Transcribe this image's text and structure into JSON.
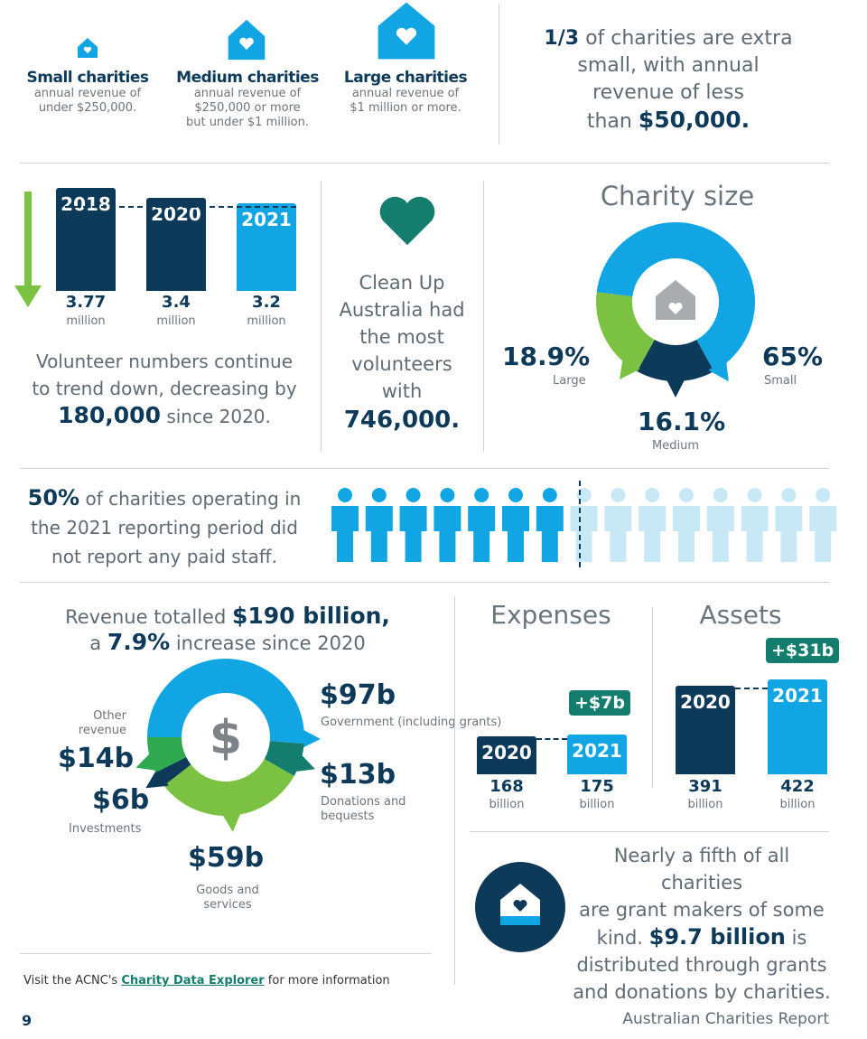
{
  "categories": [
    {
      "title": "Small charities",
      "desc": [
        "annual revenue of",
        "under $250,000."
      ]
    },
    {
      "title": "Medium charities",
      "desc": [
        "annual revenue of",
        "$250,000 or more",
        "but under $1 million."
      ]
    },
    {
      "title": "Large charities",
      "desc": [
        "annual revenue of",
        "$1 million or more."
      ]
    }
  ],
  "extra_small": {
    "bold1": "1/3",
    "t1": " of charities are extra",
    "t2": "small, with annual",
    "t3": "revenue of less",
    "t4": "than ",
    "bold2": "$50,000."
  },
  "volunteers": {
    "line1": "Volunteer numbers continue",
    "line2": "to trend down, decreasing by",
    "bold": "180,000",
    "line3": " since 2020."
  },
  "clean_up": {
    "lines": [
      "Clean Up",
      "Australia had",
      "the most",
      "volunteers",
      "with"
    ],
    "bold": "746,000."
  },
  "charity_size_title": "Charity size",
  "staff": {
    "bold": "50%",
    "t1": " of charities operating in",
    "t2": "the 2021 reporting period did",
    "t3": "not report any paid staff."
  },
  "revenue": {
    "t1": "Revenue totalled ",
    "b1": "$190 billion,",
    "t2": "a ",
    "b2": "7.9%",
    "t3": " increase since 2020"
  },
  "expenses_title": "Expenses",
  "assets_title": "Assets",
  "expenses_badge": "+$7b",
  "assets_badge": "+$31b",
  "grants": {
    "l1": "Nearly a fifth of all charities",
    "l2": "are grant makers of some",
    "l3a": "kind. ",
    "b": "$9.7 billion",
    "l3b": " is",
    "l4": "distributed through grants",
    "l5": "and donations by charities."
  },
  "footer": {
    "visit": "Visit the ACNC's ",
    "link": "Charity Data Explorer",
    "more": " for more information",
    "page": "9",
    "report": "Australian Charities Report"
  },
  "colors": {
    "navy": "#0e3a5a",
    "light_blue": "#12a5e3",
    "lime": "#7cc242",
    "green": "#2fa84f",
    "teal": "#147d6e",
    "pale_blue": "#c8e8f6"
  },
  "chart_data": [
    {
      "type": "bar",
      "id": "volunteers",
      "categories": [
        "2018",
        "2020",
        "2021"
      ],
      "values": [
        3.77,
        3.4,
        3.2
      ],
      "unit": "million"
    },
    {
      "type": "pie",
      "id": "charity_size",
      "title": "Charity size",
      "labels": [
        "Small",
        "Medium",
        "Large"
      ],
      "values": [
        65,
        16.1,
        18.9
      ],
      "value_labels": [
        "65%",
        "16.1%",
        "18.9%"
      ]
    },
    {
      "type": "pie",
      "id": "revenue",
      "labels": [
        "Government (including grants)",
        "Donations and bequests",
        "Goods and services",
        "Investments",
        "Other revenue"
      ],
      "values": [
        97,
        13,
        59,
        6,
        14
      ],
      "value_labels": [
        "$97b",
        "$13b",
        "$59b",
        "$6b",
        "$14b"
      ]
    },
    {
      "type": "bar",
      "id": "expenses",
      "title": "Expenses",
      "categories": [
        "2020",
        "2021"
      ],
      "values": [
        168,
        175
      ],
      "unit": "billion"
    },
    {
      "type": "bar",
      "id": "assets",
      "title": "Assets",
      "categories": [
        "2020",
        "2021"
      ],
      "values": [
        391,
        422
      ],
      "unit": "billion"
    },
    {
      "type": "pictograph",
      "id": "paid_staff",
      "total_icons": 15,
      "highlighted_icons": 7.5,
      "value_label": "50%"
    }
  ]
}
